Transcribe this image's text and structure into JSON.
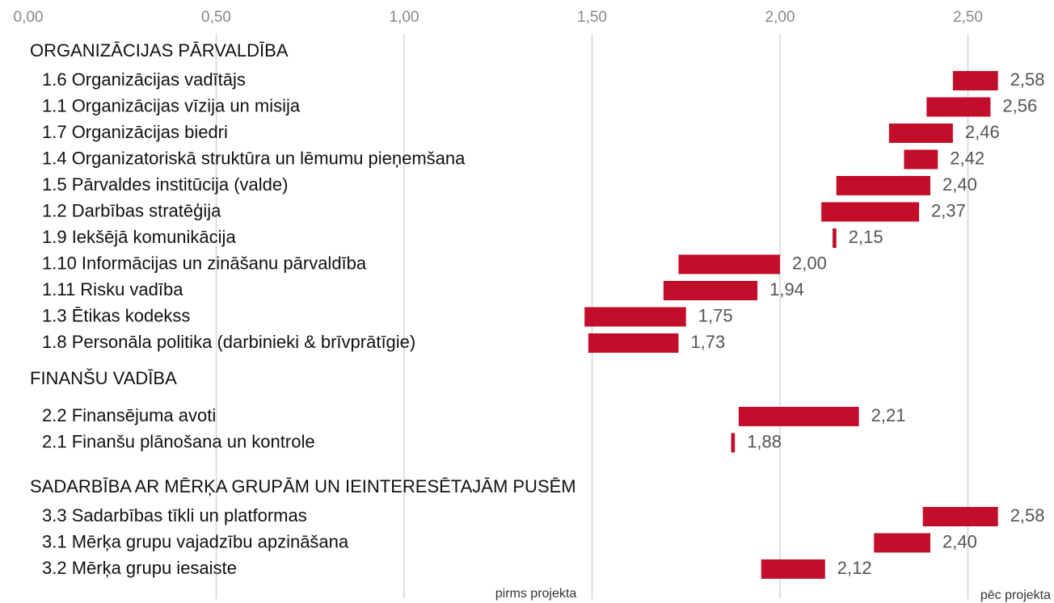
{
  "chart_data": {
    "type": "range_bar",
    "color": "#c20e2a",
    "xlim": [
      0,
      2.6
    ],
    "xticks": [
      {
        "value": 0,
        "label": "0,00"
      },
      {
        "value": 0.5,
        "label": "0,50"
      },
      {
        "value": 1,
        "label": "1,00"
      },
      {
        "value": 1.5,
        "label": "1,50"
      },
      {
        "value": 2,
        "label": "2,00"
      },
      {
        "value": 2.5,
        "label": "2,50"
      }
    ],
    "grid": true,
    "annotations": [
      "pirms projekta",
      "pēc projekta"
    ],
    "groups": [
      {
        "name": "ORGANIZĀCIJAS PĀRVALDĪBA",
        "categories": [
          "1.6 Organizācijas vadītājs",
          "1.1 Organizācijas vīzija un misija",
          "1.7 Organizācijas biedri",
          "1.4 Organizatoriskā struktūra un lēmumu pieņemšana",
          "1.5 Pārvaldes institūcija (valde)",
          "1.2 Darbības stratēģija",
          "1.9 Iekšējā komunikācija",
          "1.10 Informācijas un zināšanu pārvaldība",
          "1.11 Risku vadība",
          "1.3 Ētikas kodekss",
          "1.8 Personāla politika (darbinieki & brīvprātīgie)"
        ],
        "start": [
          2.46,
          2.39,
          2.29,
          2.33,
          2.15,
          2.11,
          2.14,
          1.73,
          1.69,
          1.48,
          1.49
        ],
        "values": [
          2.58,
          2.56,
          2.46,
          2.42,
          2.4,
          2.37,
          2.15,
          2.0,
          1.94,
          1.75,
          1.73
        ],
        "value_labels": [
          "2,58",
          "2,56",
          "2,46",
          "2,42",
          "2,40",
          "2,37",
          "2,15",
          "2,00",
          "1,94",
          "1,75",
          "1,73"
        ]
      },
      {
        "name": "FINANŠU VADĪBA",
        "categories": [
          "2.2 Finansējuma avoti",
          "2.1 Finanšu plānošana un kontrole"
        ],
        "start": [
          1.89,
          1.87
        ],
        "values": [
          2.21,
          1.88
        ],
        "value_labels": [
          "2,21",
          "1,88"
        ]
      },
      {
        "name": "SADARBĪBA AR MĒRĶA GRUPĀM UN IEINTERESĒTAJĀM PUSĒM",
        "categories": [
          "3.3 Sadarbības tīkli un platformas",
          "3.1 Mērķa grupu vajadzību apzināšana",
          "3.2 Mērķa grupu iesaiste"
        ],
        "start": [
          2.38,
          2.25,
          1.95
        ],
        "values": [
          2.58,
          2.4,
          2.12
        ],
        "value_labels": [
          "2,58",
          "2,40",
          "2,12"
        ]
      }
    ]
  }
}
